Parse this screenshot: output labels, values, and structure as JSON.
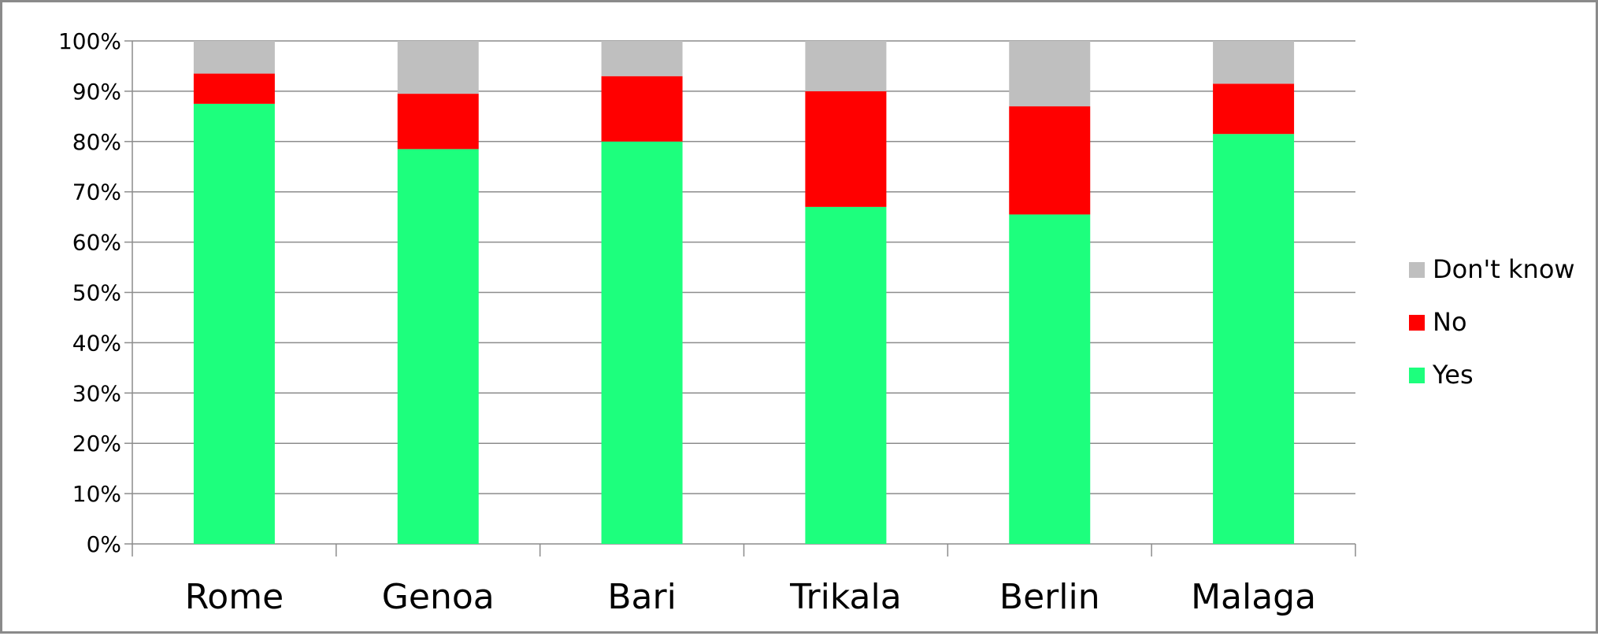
{
  "chart_data": {
    "type": "bar",
    "stacked": true,
    "percent_stacked": true,
    "categories": [
      "Rome",
      "Genoa",
      "Bari",
      "Trikala",
      "Berlin",
      "Malaga"
    ],
    "series": [
      {
        "name": "Yes",
        "color": "#1DFF7D",
        "values": [
          87.5,
          78.5,
          80,
          67,
          65.5,
          81.5
        ]
      },
      {
        "name": "No",
        "color": "#FF0000",
        "values": [
          6,
          11,
          13,
          23,
          21.5,
          10
        ]
      },
      {
        "name": "Don't know",
        "color": "#BFBFBF",
        "values": [
          6.5,
          10.5,
          7,
          10,
          13,
          8.5
        ]
      }
    ],
    "ylim": [
      0,
      100
    ],
    "yticks": [
      "0%",
      "10%",
      "20%",
      "30%",
      "40%",
      "50%",
      "60%",
      "70%",
      "80%",
      "90%",
      "100%"
    ],
    "grid": true,
    "legend": {
      "position": "right",
      "entries": [
        "Don't know",
        "No",
        "Yes"
      ]
    },
    "title": "",
    "xlabel": "",
    "ylabel": ""
  }
}
